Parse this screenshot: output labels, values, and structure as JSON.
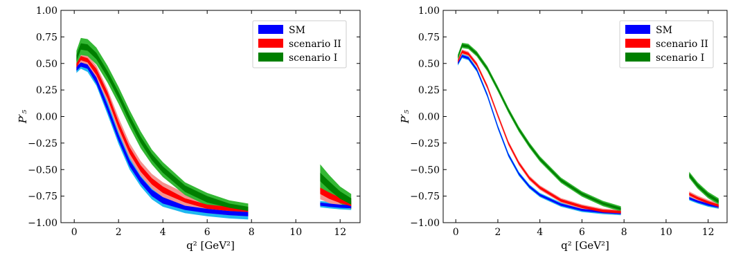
{
  "chart_data": [
    {
      "type": "area",
      "xlim": [
        -0.6,
        12.9
      ],
      "ylim": [
        -1.0,
        1.0
      ],
      "xticks": [
        0,
        2,
        4,
        6,
        8,
        10,
        12
      ],
      "yticks": [
        -1.0,
        -0.75,
        -0.5,
        -0.25,
        0.0,
        0.25,
        0.5,
        0.75,
        1.0
      ],
      "xtick_labels": [
        "0",
        "2",
        "4",
        "6",
        "8",
        "10",
        "12"
      ],
      "ytick_labels": [
        "−1.00",
        "−0.75",
        "−0.50",
        "−0.25",
        "0.00",
        "0.25",
        "0.50",
        "0.75",
        "1.00"
      ],
      "xlabel": "q² [GeV²]",
      "ylabel": "P′₅",
      "legend_position": "top-right",
      "grid": false,
      "series": [
        {
          "name": "SM",
          "color": "#0000ff",
          "outer_color": "#1fb8ef",
          "segments": [
            {
              "x": [
                0.1,
                0.3,
                0.6,
                1.0,
                1.5,
                2.0,
                2.5,
                3.0,
                3.5,
                4.0,
                5.0,
                6.0,
                7.0,
                7.85
              ],
              "y": [
                0.45,
                0.49,
                0.47,
                0.34,
                0.08,
                -0.2,
                -0.44,
                -0.6,
                -0.72,
                -0.79,
                -0.86,
                -0.89,
                -0.91,
                -0.92
              ],
              "inner": [
                0.02,
                0.02,
                0.02,
                0.03,
                0.03,
                0.03,
                0.03,
                0.03,
                0.03,
                0.03,
                0.02,
                0.02,
                0.02,
                0.02
              ],
              "outer": [
                0.04,
                0.04,
                0.05,
                0.05,
                0.06,
                0.06,
                0.06,
                0.06,
                0.06,
                0.06,
                0.05,
                0.05,
                0.05,
                0.05
              ]
            },
            {
              "x": [
                11.1,
                11.5,
                12.0,
                12.5
              ],
              "y": [
                -0.825,
                -0.835,
                -0.845,
                -0.85
              ],
              "inner": [
                0.015,
                0.015,
                0.015,
                0.015
              ],
              "outer": [
                0.03,
                0.03,
                0.03,
                0.03
              ]
            }
          ]
        },
        {
          "name": "scenario II",
          "color": "#ff0000",
          "outer_color": "#f4938f",
          "segments": [
            {
              "x": [
                0.1,
                0.3,
                0.6,
                1.0,
                1.5,
                2.0,
                2.5,
                3.0,
                3.5,
                4.0,
                5.0,
                6.0,
                7.0,
                7.85
              ],
              "y": [
                0.48,
                0.55,
                0.53,
                0.42,
                0.2,
                -0.08,
                -0.32,
                -0.49,
                -0.61,
                -0.69,
                -0.79,
                -0.85,
                -0.87,
                -0.88
              ],
              "inner": [
                0.02,
                0.02,
                0.02,
                0.03,
                0.03,
                0.03,
                0.03,
                0.03,
                0.03,
                0.03,
                0.02,
                0.02,
                0.02,
                0.02
              ],
              "outer": [
                0.05,
                0.05,
                0.05,
                0.06,
                0.06,
                0.07,
                0.07,
                0.07,
                0.07,
                0.07,
                0.07,
                0.06,
                0.06,
                0.06
              ]
            },
            {
              "x": [
                11.1,
                11.5,
                12.0,
                12.5
              ],
              "y": [
                -0.7,
                -0.745,
                -0.79,
                -0.82
              ],
              "inner": [
                0.03,
                0.03,
                0.025,
                0.025
              ],
              "outer": [
                0.08,
                0.07,
                0.06,
                0.05
              ]
            }
          ]
        },
        {
          "name": "scenario I",
          "color": "#007f00",
          "outer_color": "#34b834",
          "segments": [
            {
              "x": [
                0.1,
                0.3,
                0.6,
                1.0,
                1.5,
                2.0,
                2.5,
                3.0,
                3.5,
                4.0,
                5.0,
                6.0,
                7.0,
                7.85
              ],
              "y": [
                0.55,
                0.66,
                0.65,
                0.57,
                0.4,
                0.2,
                -0.02,
                -0.22,
                -0.38,
                -0.5,
                -0.68,
                -0.78,
                -0.84,
                -0.87
              ],
              "inner": [
                0.03,
                0.03,
                0.03,
                0.03,
                0.03,
                0.03,
                0.03,
                0.03,
                0.03,
                0.03,
                0.03,
                0.03,
                0.02,
                0.02
              ],
              "outer": [
                0.07,
                0.08,
                0.08,
                0.08,
                0.08,
                0.08,
                0.08,
                0.08,
                0.07,
                0.07,
                0.06,
                0.06,
                0.05,
                0.05
              ]
            },
            {
              "x": [
                11.1,
                11.5,
                12.0,
                12.5
              ],
              "y": [
                -0.57,
                -0.65,
                -0.74,
                -0.8
              ],
              "inner": [
                0.04,
                0.04,
                0.035,
                0.03
              ],
              "outer": [
                0.12,
                0.1,
                0.08,
                0.07
              ]
            }
          ]
        }
      ]
    },
    {
      "type": "area",
      "xlim": [
        -0.6,
        12.9
      ],
      "ylim": [
        -1.0,
        1.0
      ],
      "xticks": [
        0,
        2,
        4,
        6,
        8,
        10,
        12
      ],
      "yticks": [
        -1.0,
        -0.75,
        -0.5,
        -0.25,
        0.0,
        0.25,
        0.5,
        0.75,
        1.0
      ],
      "xtick_labels": [
        "0",
        "2",
        "4",
        "6",
        "8",
        "10",
        "12"
      ],
      "ytick_labels": [
        "−1.00",
        "−0.75",
        "−0.50",
        "−0.25",
        "0.00",
        "0.25",
        "0.50",
        "0.75",
        "1.00"
      ],
      "xlabel": "q² [GeV²]",
      "ylabel": "P′₅",
      "legend_position": "top-right",
      "grid": false,
      "series": [
        {
          "name": "SM",
          "color": "#0000ff",
          "outer_color": "#1fb8ef",
          "segments": [
            {
              "x": [
                0.1,
                0.3,
                0.6,
                1.0,
                1.5,
                2.0,
                2.5,
                3.0,
                3.5,
                4.0,
                5.0,
                6.0,
                7.0,
                7.85
              ],
              "y": [
                0.5,
                0.57,
                0.55,
                0.44,
                0.2,
                -0.1,
                -0.36,
                -0.54,
                -0.66,
                -0.74,
                -0.83,
                -0.88,
                -0.9,
                -0.91
              ],
              "inner": [
                0.01,
                0.01,
                0.01,
                0.01,
                0.01,
                0.01,
                0.01,
                0.01,
                0.01,
                0.01,
                0.01,
                0.01,
                0.01,
                0.01
              ],
              "outer": [
                0.02,
                0.02,
                0.02,
                0.02,
                0.02,
                0.02,
                0.02,
                0.02,
                0.02,
                0.02,
                0.02,
                0.02,
                0.02,
                0.02
              ]
            },
            {
              "x": [
                11.1,
                11.5,
                12.0,
                12.5
              ],
              "y": [
                -0.77,
                -0.8,
                -0.83,
                -0.85
              ],
              "inner": [
                0.01,
                0.01,
                0.01,
                0.01
              ],
              "outer": [
                0.02,
                0.02,
                0.02,
                0.02
              ]
            }
          ]
        },
        {
          "name": "scenario II",
          "color": "#ff0000",
          "outer_color": "#f4938f",
          "segments": [
            {
              "x": [
                0.1,
                0.3,
                0.6,
                1.0,
                1.5,
                2.0,
                2.5,
                3.0,
                3.5,
                4.0,
                5.0,
                6.0,
                7.0,
                7.85
              ],
              "y": [
                0.52,
                0.61,
                0.59,
                0.49,
                0.28,
                0.01,
                -0.25,
                -0.44,
                -0.58,
                -0.67,
                -0.79,
                -0.85,
                -0.89,
                -0.9
              ],
              "inner": [
                0.012,
                0.012,
                0.012,
                0.012,
                0.012,
                0.012,
                0.012,
                0.012,
                0.012,
                0.012,
                0.012,
                0.012,
                0.012,
                0.012
              ],
              "outer": [
                0.022,
                0.022,
                0.022,
                0.022,
                0.022,
                0.022,
                0.022,
                0.022,
                0.022,
                0.022,
                0.022,
                0.022,
                0.022,
                0.022
              ]
            },
            {
              "x": [
                11.1,
                11.5,
                12.0,
                12.5
              ],
              "y": [
                -0.73,
                -0.77,
                -0.81,
                -0.84
              ],
              "inner": [
                0.012,
                0.012,
                0.012,
                0.012
              ],
              "outer": [
                0.025,
                0.025,
                0.025,
                0.025
              ]
            }
          ]
        },
        {
          "name": "scenario I",
          "color": "#007f00",
          "outer_color": "#34b834",
          "segments": [
            {
              "x": [
                0.1,
                0.3,
                0.6,
                1.0,
                1.5,
                2.0,
                2.5,
                3.0,
                3.5,
                4.0,
                5.0,
                6.0,
                7.0,
                7.85
              ],
              "y": [
                0.56,
                0.67,
                0.66,
                0.59,
                0.45,
                0.26,
                0.06,
                -0.12,
                -0.27,
                -0.4,
                -0.6,
                -0.73,
                -0.82,
                -0.87
              ],
              "inner": [
                0.012,
                0.012,
                0.012,
                0.012,
                0.012,
                0.012,
                0.012,
                0.012,
                0.012,
                0.012,
                0.012,
                0.012,
                0.012,
                0.012
              ],
              "outer": [
                0.025,
                0.025,
                0.025,
                0.025,
                0.025,
                0.025,
                0.025,
                0.025,
                0.025,
                0.025,
                0.025,
                0.025,
                0.025,
                0.025
              ]
            },
            {
              "x": [
                11.1,
                11.5,
                12.0,
                12.5
              ],
              "y": [
                -0.55,
                -0.65,
                -0.74,
                -0.8
              ],
              "inner": [
                0.015,
                0.015,
                0.015,
                0.015
              ],
              "outer": [
                0.03,
                0.03,
                0.03,
                0.03
              ]
            }
          ]
        }
      ]
    }
  ]
}
